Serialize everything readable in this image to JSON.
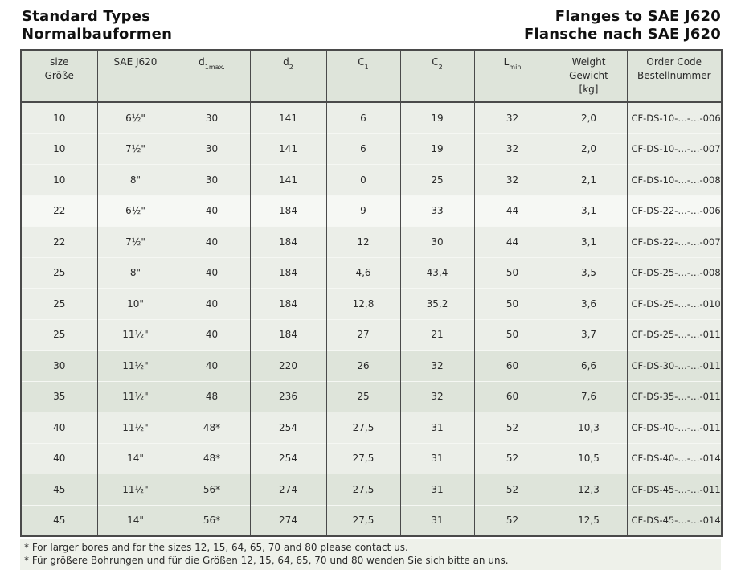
{
  "page": {
    "title_left_line1": "Standard Types",
    "title_left_line2": "Normalbauformen",
    "title_right_line1": "Flanges to SAE J620",
    "title_right_line2": "Flansche nach SAE J620"
  },
  "table": {
    "columns": [
      {
        "line1": "size",
        "line2": "Größe"
      },
      {
        "line1": "SAE J620"
      },
      {
        "main": "d",
        "sub": "1max."
      },
      {
        "main": "d",
        "sub": "2"
      },
      {
        "main": "C",
        "sub": "1"
      },
      {
        "main": "C",
        "sub": "2"
      },
      {
        "main": "L",
        "sub": "min"
      },
      {
        "line1": "Weight",
        "line2": "Gewicht",
        "line3": "[kg]"
      },
      {
        "line1": "Order Code",
        "line2": "Bestellnummer"
      }
    ],
    "rows": [
      {
        "shade": "a",
        "cells": [
          "10",
          "6½\"",
          "30",
          "141",
          "6",
          "19",
          "32",
          "2,0",
          "CF-DS-10-…-…-006"
        ]
      },
      {
        "shade": "a",
        "cells": [
          "10",
          "7½\"",
          "30",
          "141",
          "6",
          "19",
          "32",
          "2,0",
          "CF-DS-10-…-…-007"
        ]
      },
      {
        "shade": "a",
        "cells": [
          "10",
          "8\"",
          "30",
          "141",
          "0",
          "25",
          "32",
          "2,1",
          "CF-DS-10-…-…-008"
        ]
      },
      {
        "shade": "b",
        "cells": [
          "22",
          "6½\"",
          "40",
          "184",
          "9",
          "33",
          "44",
          "3,1",
          "CF-DS-22-…-…-006"
        ]
      },
      {
        "shade": "a",
        "cells": [
          "22",
          "7½\"",
          "40",
          "184",
          "12",
          "30",
          "44",
          "3,1",
          "CF-DS-22-…-…-007"
        ]
      },
      {
        "shade": "a",
        "cells": [
          "25",
          "8\"",
          "40",
          "184",
          "4,6",
          "43,4",
          "50",
          "3,5",
          "CF-DS-25-…-…-008"
        ]
      },
      {
        "shade": "a",
        "cells": [
          "25",
          "10\"",
          "40",
          "184",
          "12,8",
          "35,2",
          "50",
          "3,6",
          "CF-DS-25-…-…-010"
        ]
      },
      {
        "shade": "a",
        "cells": [
          "25",
          "11½\"",
          "40",
          "184",
          "27",
          "21",
          "50",
          "3,7",
          "CF-DS-25-…-…-011"
        ]
      },
      {
        "shade": "c",
        "cells": [
          "30",
          "11½\"",
          "40",
          "220",
          "26",
          "32",
          "60",
          "6,6",
          "CF-DS-30-…-…-011"
        ]
      },
      {
        "shade": "c",
        "cells": [
          "35",
          "11½\"",
          "48",
          "236",
          "25",
          "32",
          "60",
          "7,6",
          "CF-DS-35-…-…-011"
        ]
      },
      {
        "shade": "a",
        "cells": [
          "40",
          "11½\"",
          "48*",
          "254",
          "27,5",
          "31",
          "52",
          "10,3",
          "CF-DS-40-…-…-011"
        ]
      },
      {
        "shade": "a",
        "cells": [
          "40",
          "14\"",
          "48*",
          "254",
          "27,5",
          "31",
          "52",
          "10,5",
          "CF-DS-40-…-…-014"
        ]
      },
      {
        "shade": "c",
        "cells": [
          "45",
          "11½\"",
          "56*",
          "274",
          "27,5",
          "31",
          "52",
          "12,3",
          "CF-DS-45-…-…-011"
        ]
      },
      {
        "shade": "c",
        "cells": [
          "45",
          "14\"",
          "56*",
          "274",
          "27,5",
          "31",
          "52",
          "12,5",
          "CF-DS-45-…-…-014"
        ]
      }
    ]
  },
  "footnotes": {
    "line1": "* For larger bores and for the sizes 12, 15, 64, 65, 70 and 80 please contact us.",
    "line2": "* Für größere Bohrungen und für die Größen 12, 15, 64, 65, 70 und 80 wenden Sie sich bitte an uns."
  },
  "colors": {
    "line": "#4a4a4a",
    "row_light": "#ebeee8",
    "row_lighter": "#f6f8f4",
    "row_dark": "#dee4da",
    "row_sep": "#f5f7f3",
    "header_bg": "#dee4da",
    "footer_bg": "#eef1ea",
    "text": "#2a2a2a",
    "title_text": "#111111"
  }
}
